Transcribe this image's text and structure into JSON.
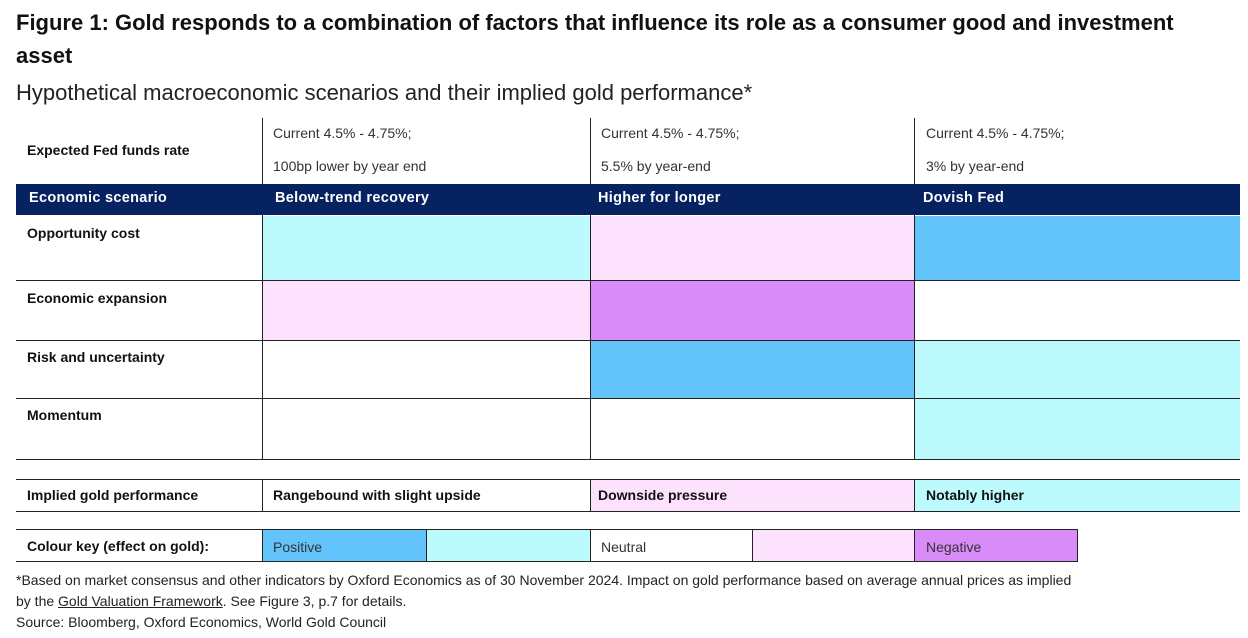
{
  "title": "Figure 1: Gold responds to a combination of factors that influence its role as a consumer good and investment asset",
  "subtitle": "Hypothetical macroeconomic scenarios and their implied gold performance*",
  "fed": {
    "label": "Expected Fed funds rate",
    "cols": [
      {
        "line1": "Current 4.5% - 4.75%;",
        "line2": "100bp lower by year end"
      },
      {
        "line1": "Current 4.5% - 4.75%;",
        "line2": "5.5% by year-end"
      },
      {
        "line1": "Current 4.5% - 4.75%;",
        "line2": "3% by year-end"
      }
    ]
  },
  "header": {
    "label": "Economic scenario",
    "scenarios": [
      "Below-trend recovery",
      "Higher for longer",
      "Dovish Fed"
    ]
  },
  "rows": [
    {
      "label": "Opportunity cost",
      "effects": [
        "slightly-positive",
        "slightly-negative",
        "positive"
      ]
    },
    {
      "label": "Economic expansion",
      "effects": [
        "slightly-negative",
        "negative",
        "neutral"
      ]
    },
    {
      "label": "Risk and uncertainty",
      "effects": [
        "neutral",
        "positive",
        "slightly-positive"
      ]
    },
    {
      "label": "Momentum",
      "effects": [
        "neutral",
        "neutral",
        "slightly-positive"
      ]
    }
  ],
  "implied": {
    "label": "Implied gold performance",
    "values": [
      "Rangebound with slight upside",
      "Downside pressure",
      "Notably higher"
    ],
    "effects": [
      "neutral",
      "slightly-negative",
      "slightly-positive"
    ]
  },
  "key": {
    "label": "Colour key (effect on gold):",
    "positive": "Positive",
    "neutral": "Neutral",
    "negative": "Negative"
  },
  "colors": {
    "positive": "#62c4fb",
    "slightly-positive": "#bdfafd",
    "neutral": "#ffffff",
    "slightly-negative": "#fde2fd",
    "negative": "#d98bf9",
    "header": "#062260"
  },
  "footnote": {
    "line1": "*Based on market consensus and other indicators by Oxford Economics as of 30 November 2024. Impact on gold performance based on average annual prices as implied",
    "line2_pre": "by the ",
    "line2_link": "Gold Valuation Framework",
    "line2_post": ". See Figure 3, p.7 for details.",
    "source": "Source: Bloomberg, Oxford Economics, World Gold Council"
  }
}
